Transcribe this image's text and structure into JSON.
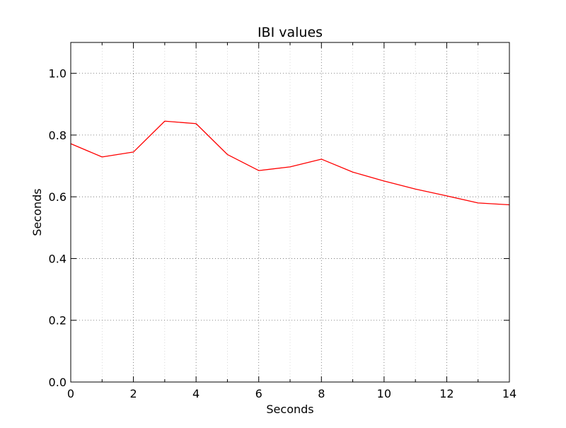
{
  "chart_data": {
    "type": "line",
    "title": "IBI values",
    "xlabel": "Seconds",
    "ylabel": "Seconds",
    "xlim": [
      0,
      14
    ],
    "ylim": [
      0,
      1.1
    ],
    "x_ticks": [
      0,
      2,
      4,
      6,
      8,
      10,
      12,
      14
    ],
    "x_tick_labels": [
      "0",
      "2",
      "4",
      "6",
      "8",
      "10",
      "12",
      "14"
    ],
    "y_ticks": [
      0.0,
      0.2,
      0.4,
      0.6,
      0.8,
      1.0
    ],
    "y_tick_labels": [
      "0.0",
      "0.2",
      "0.4",
      "0.6",
      "0.8",
      "1.0"
    ],
    "x_minor_grid": [
      1,
      3,
      5,
      7,
      9,
      11,
      13
    ],
    "grid": true,
    "grid_style": "dotted",
    "series": [
      {
        "color": "#ff0000",
        "x": [
          0,
          1,
          2,
          3,
          4,
          5,
          6,
          7,
          8,
          9,
          10,
          11,
          12,
          13,
          14
        ],
        "values": [
          0.772,
          0.729,
          0.745,
          0.845,
          0.837,
          0.737,
          0.685,
          0.697,
          0.722,
          0.68,
          0.651,
          0.625,
          0.603,
          0.58,
          0.574
        ]
      }
    ]
  }
}
